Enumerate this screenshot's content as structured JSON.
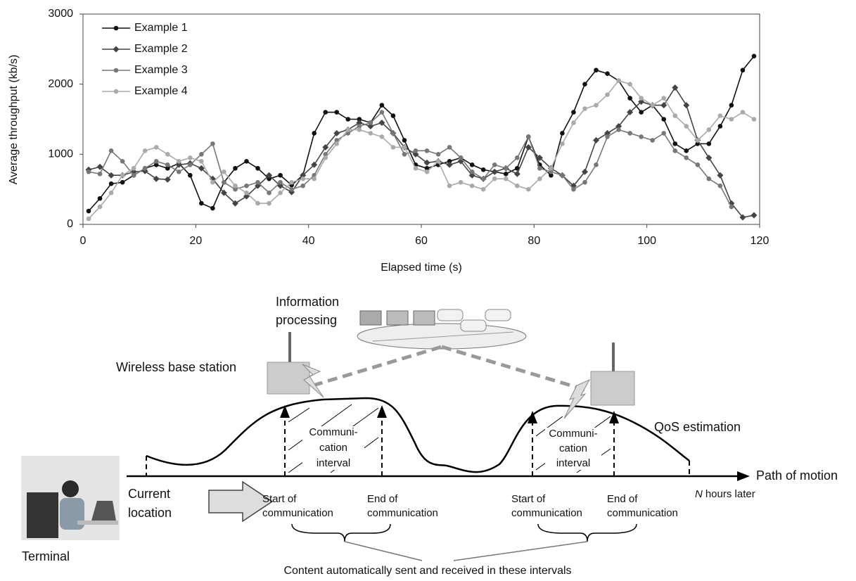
{
  "chart_data": {
    "type": "line",
    "xlabel": "Elapsed time (s)",
    "ylabel": "Average throughput (kb/s)",
    "x": [
      1,
      3,
      5,
      7,
      9,
      11,
      13,
      15,
      17,
      19,
      21,
      23,
      25,
      27,
      29,
      31,
      33,
      35,
      37,
      39,
      41,
      43,
      45,
      47,
      49,
      51,
      53,
      55,
      57,
      59,
      61,
      63,
      65,
      67,
      69,
      71,
      73,
      75,
      77,
      79,
      81,
      83,
      85,
      87,
      89,
      91,
      93,
      95,
      97,
      99,
      101,
      103,
      105,
      107,
      109,
      111,
      113,
      115,
      117,
      119
    ],
    "series": [
      {
        "name": "Example 1",
        "color": "#111111",
        "marker": "circle",
        "values": [
          190,
          370,
          580,
          600,
          700,
          800,
          850,
          800,
          870,
          700,
          300,
          230,
          600,
          800,
          900,
          800,
          650,
          700,
          560,
          700,
          1300,
          1600,
          1600,
          1500,
          1500,
          1450,
          1700,
          1550,
          1200,
          850,
          800,
          850,
          900,
          950,
          850,
          780,
          750,
          720,
          800,
          1250,
          850,
          700,
          1300,
          1600,
          2000,
          2200,
          2150,
          2050,
          1800,
          1600,
          1700,
          1500,
          1150,
          1050,
          1150,
          1150,
          1400,
          1700,
          2200,
          2400
        ]
      },
      {
        "name": "Example 2",
        "color": "#444444",
        "marker": "diamond",
        "values": [
          780,
          820,
          700,
          700,
          750,
          760,
          650,
          640,
          850,
          870,
          800,
          650,
          450,
          300,
          400,
          550,
          700,
          550,
          460,
          700,
          850,
          1100,
          1300,
          1350,
          1450,
          1400,
          1450,
          1300,
          1100,
          1000,
          880,
          900,
          850,
          900,
          700,
          650,
          750,
          800,
          720,
          1100,
          950,
          800,
          700,
          550,
          750,
          1200,
          1300,
          1400,
          1600,
          1750,
          1700,
          1700,
          1950,
          1700,
          1200,
          950,
          700,
          300,
          100,
          130
        ]
      },
      {
        "name": "Example 3",
        "color": "#777777",
        "marker": "circle",
        "values": [
          750,
          720,
          1050,
          900,
          700,
          800,
          900,
          850,
          750,
          850,
          1000,
          1150,
          600,
          500,
          550,
          600,
          450,
          600,
          500,
          550,
          700,
          1000,
          1200,
          1300,
          1400,
          1450,
          1600,
          1300,
          1000,
          1050,
          1050,
          1000,
          1100,
          950,
          750,
          650,
          850,
          800,
          950,
          1250,
          800,
          750,
          700,
          500,
          600,
          850,
          1250,
          1350,
          1300,
          1250,
          1200,
          1300,
          1050,
          950,
          850,
          650,
          550,
          250,
          null,
          null
        ]
      },
      {
        "name": "Example 4",
        "color": "#aaaaaa",
        "marker": "circle",
        "values": [
          80,
          250,
          450,
          700,
          800,
          1050,
          1100,
          1000,
          900,
          950,
          900,
          600,
          750,
          550,
          450,
          300,
          300,
          450,
          600,
          650,
          650,
          950,
          1150,
          1350,
          1350,
          1300,
          1250,
          1100,
          1100,
          800,
          750,
          900,
          550,
          600,
          550,
          500,
          650,
          650,
          550,
          500,
          650,
          800,
          1150,
          1450,
          1650,
          1700,
          1850,
          2050,
          2000,
          1800,
          1700,
          1800,
          1550,
          1400,
          1200,
          1350,
          1550,
          1500,
          1600,
          1500
        ]
      }
    ],
    "xlim": [
      0,
      120
    ],
    "xticks": [
      0,
      20,
      40,
      60,
      80,
      100,
      120
    ],
    "ylim": [
      0,
      3000
    ],
    "yticks": [
      0,
      1000,
      2000,
      3000
    ],
    "grid": false,
    "legend": "upper left"
  },
  "diagram": {
    "information_processing": [
      "Information",
      "processing"
    ],
    "wireless_base_station": "Wireless base station",
    "qos_estimation": "QoS estimation",
    "interval_1": [
      "Communi-",
      "cation",
      "interval"
    ],
    "interval_2": [
      "Communi-",
      "cation",
      "interval"
    ],
    "path_of_motion": "Path of motion",
    "current_location": [
      "Current",
      "location"
    ],
    "start_1": [
      "Start of",
      "communication"
    ],
    "end_1": [
      "End of",
      "communication"
    ],
    "start_2": [
      "Start of",
      "communication"
    ],
    "end_2": [
      "End of",
      "communication"
    ],
    "n_hours_later": {
      "variable": "N",
      "text": "hours later"
    },
    "terminal": "Terminal",
    "caption": "Content automatically sent and received in these intervals"
  }
}
